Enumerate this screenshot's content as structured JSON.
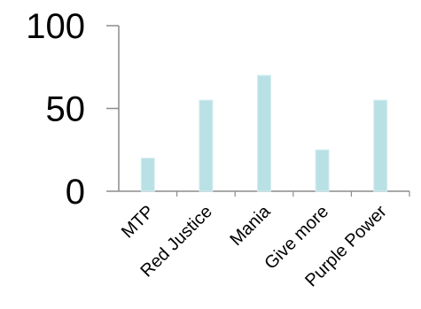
{
  "chart_data": {
    "type": "bar",
    "title": "",
    "xlabel": "",
    "ylabel": "",
    "categories": [
      "MTP",
      "Red Justice",
      "Mania",
      "Give more",
      "Purple Power"
    ],
    "values": [
      20,
      55,
      70,
      25,
      55
    ],
    "ylim": [
      0,
      100
    ],
    "yticks": [
      0,
      50,
      100
    ],
    "ytick_labels": [
      "0",
      "50",
      "100"
    ],
    "grid": false,
    "legend": "none",
    "colors": {
      "bar_fill": "#b9e1e5",
      "bar_edge": "#d4eef1",
      "axis": "#8c8c8c",
      "text": "#000000"
    }
  }
}
